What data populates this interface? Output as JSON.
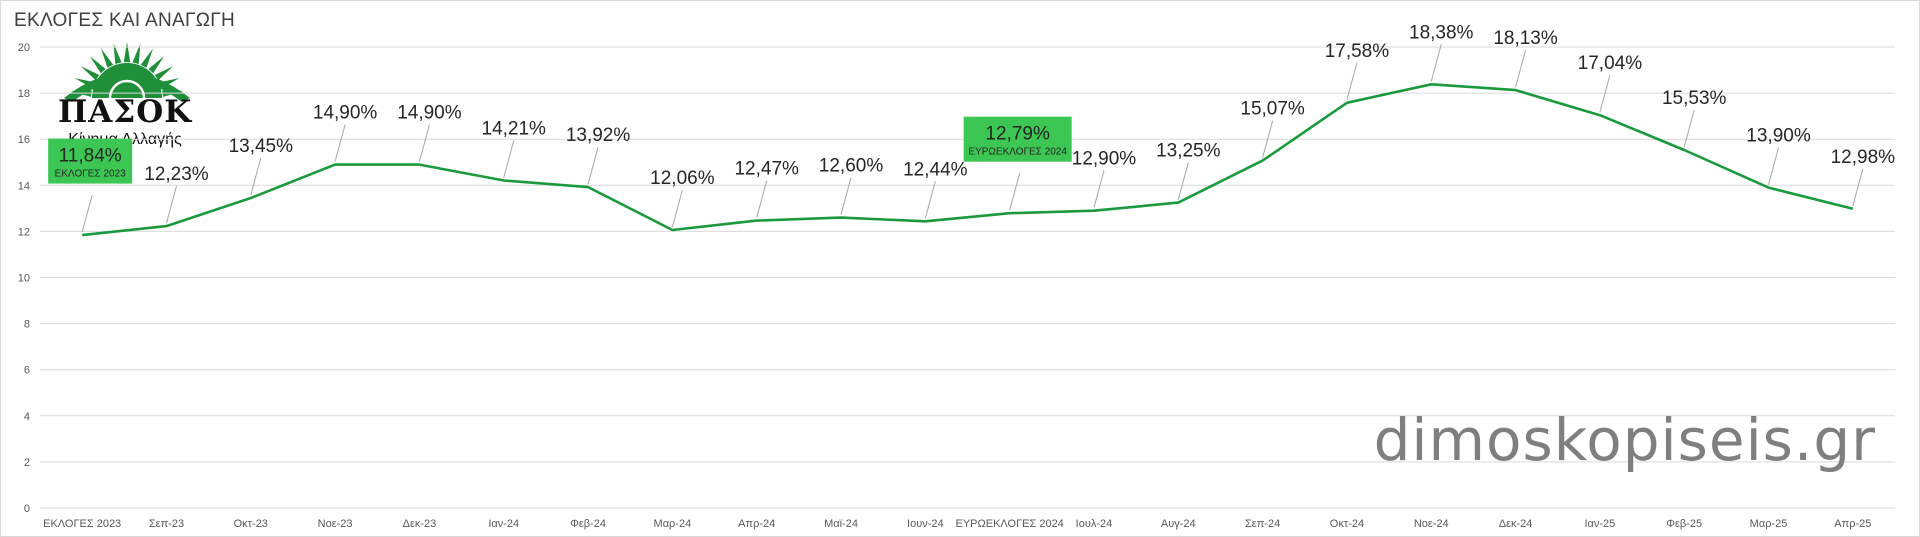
{
  "chart_title": "ΕΚΛΟΓΕΣ ΚΑΙ ΑΝΑΓΩΓΗ",
  "logo": {
    "text": "ΠΑΣΟΚ",
    "subtitle": "Κίνημα Αλλαγής"
  },
  "watermark": "dimoskopiseis.gr",
  "colors": {
    "line": "#1a9a3c",
    "grid": "#d9d9d9",
    "highlight_box": "#3cc653",
    "logo_green": "#1f8f3a"
  },
  "chart_data": {
    "type": "line",
    "title": "ΕΚΛΟΓΕΣ ΚΑΙ ΑΝΑΓΩΓΗ",
    "xlabel": "",
    "ylabel": "",
    "ylim": [
      0,
      20
    ],
    "yticks": [
      0,
      2,
      4,
      6,
      8,
      10,
      12,
      14,
      16,
      18,
      20
    ],
    "grid": true,
    "categories": [
      "ΕΚΛΟΓΕΣ 2023",
      "Σεπ-23",
      "Οκτ-23",
      "Νοε-23",
      "Δεκ-23",
      "Ιαν-24",
      "Φεβ-24",
      "Μαρ-24",
      "Απρ-24",
      "Μαϊ-24",
      "Ιουν-24",
      "ΕΥΡΩΕΚΛΟΓΕΣ 2024",
      "Ιουλ-24",
      "Αυγ-24",
      "Σεπ-24",
      "Οκτ-24",
      "Νοε-24",
      "Δεκ-24",
      "Ιαν-25",
      "Φεβ-25",
      "Μαρ-25",
      "Απρ-25"
    ],
    "series": [
      {
        "values": [
          11.84,
          12.23,
          13.45,
          14.9,
          14.9,
          14.21,
          13.92,
          12.06,
          12.47,
          12.6,
          12.44,
          12.79,
          12.9,
          13.25,
          15.07,
          17.58,
          18.38,
          18.13,
          17.04,
          15.53,
          13.9,
          12.98
        ],
        "labels": [
          "11,84%",
          "12,23%",
          "13,45%",
          "14,90%",
          "14,90%",
          "14,21%",
          "13,92%",
          "12,06%",
          "12,47%",
          "12,60%",
          "12,44%",
          "12,79%",
          "12,90%",
          "13,25%",
          "15,07%",
          "17,58%",
          "18,38%",
          "18,13%",
          "17,04%",
          "15,53%",
          "13,90%",
          "12,98%"
        ]
      }
    ],
    "highlights": [
      {
        "index": 0,
        "value_label": "11,84%",
        "caption": "ΕΚΛΟΓΕΣ 2023"
      },
      {
        "index": 11,
        "value_label": "12,79%",
        "caption": "ΕΥΡΩΕΚΛΟΓΕΣ 2024"
      }
    ]
  }
}
